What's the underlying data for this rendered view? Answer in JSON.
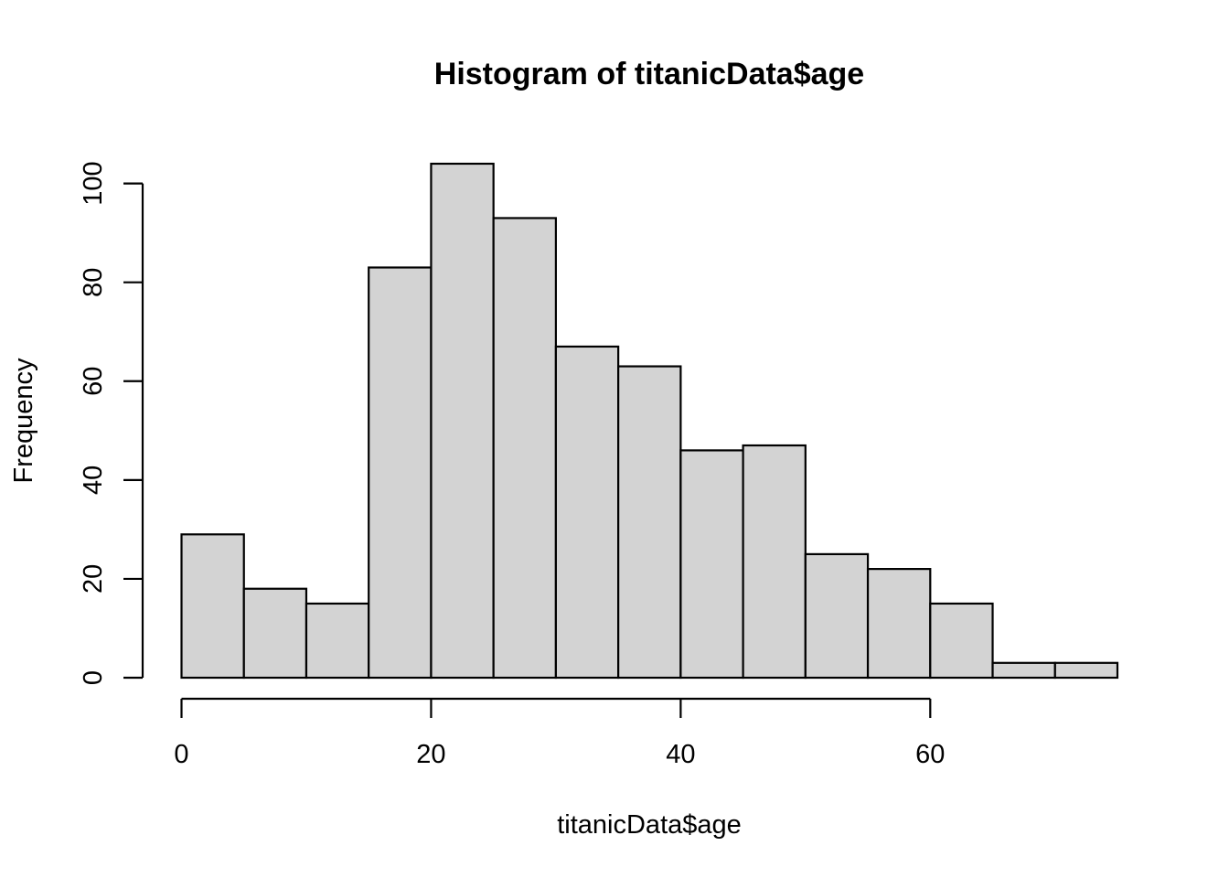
{
  "chart_data": {
    "type": "bar",
    "subtype": "histogram",
    "title": "Histogram of titanicData$age",
    "xlabel": "titanicData$age",
    "ylabel": "Frequency",
    "bin_edges": [
      0,
      5,
      10,
      15,
      20,
      25,
      30,
      35,
      40,
      45,
      50,
      55,
      60,
      65,
      70,
      75
    ],
    "values": [
      29,
      18,
      15,
      83,
      104,
      93,
      67,
      63,
      46,
      47,
      25,
      22,
      15,
      3,
      3
    ],
    "xlim": [
      0,
      75
    ],
    "ylim": [
      0,
      104
    ],
    "x_ticks": [
      0,
      20,
      40,
      60
    ],
    "x_tick_labels": [
      "0",
      "20",
      "40",
      "60"
    ],
    "y_ticks": [
      0,
      20,
      40,
      60,
      80,
      100
    ],
    "y_tick_labels": [
      "0",
      "20",
      "40",
      "60",
      "80",
      "100"
    ],
    "grid": false,
    "bar_color": "#d3d3d3",
    "edge_color": "#000000"
  }
}
